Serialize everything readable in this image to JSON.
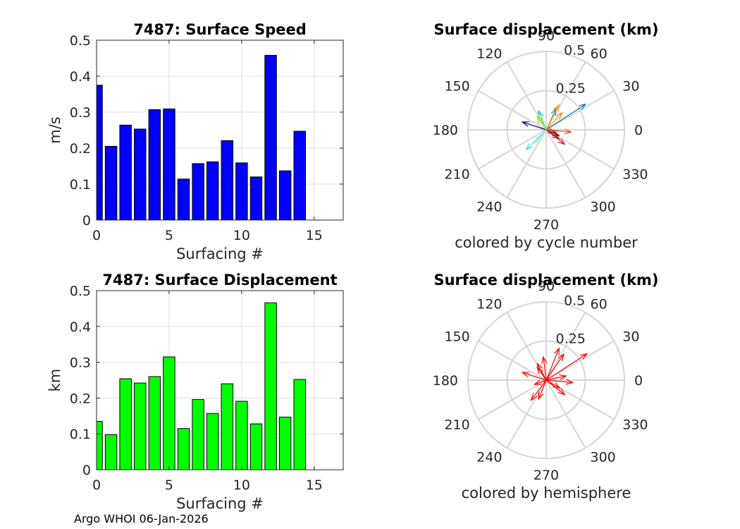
{
  "footer": "Argo WHOI 06-Jan-2026",
  "chart_data": [
    {
      "type": "bar",
      "title": "7487: Surface Speed",
      "xlabel": "Surfacing #",
      "ylabel": "m/s",
      "x": [
        0,
        1,
        2,
        3,
        4,
        5,
        6,
        7,
        8,
        9,
        10,
        11,
        12,
        13,
        14
      ],
      "values": [
        0.375,
        0.205,
        0.264,
        0.253,
        0.307,
        0.309,
        0.114,
        0.157,
        0.162,
        0.221,
        0.159,
        0.12,
        0.458,
        0.137,
        0.247
      ],
      "xlim": [
        0,
        17
      ],
      "ylim": [
        0,
        0.5
      ],
      "xticks": [
        "0",
        "5",
        "10",
        "15"
      ],
      "yticks": [
        "0",
        "0.1",
        "0.2",
        "0.3",
        "0.4",
        "0.5"
      ],
      "color": "#0000ff",
      "grid": true
    },
    {
      "type": "polar-vectors",
      "title": "Surface displacement (km)",
      "caption": "colored by cycle number",
      "rlim": [
        0,
        0.5
      ],
      "r_tick_labels": [
        "0.25",
        "0.5"
      ],
      "angle_tick_labels": [
        "0",
        "30",
        "60",
        "90",
        "120",
        "150",
        "180",
        "210",
        "240",
        "270",
        "300",
        "330"
      ],
      "vectors": [
        {
          "r": 0.3,
          "theta": 33,
          "color": "#0072bd"
        },
        {
          "r": 0.15,
          "theta": 65,
          "color": "#0090d0"
        },
        {
          "r": 0.16,
          "theta": 162,
          "color": "#00008b"
        },
        {
          "r": 0.13,
          "theta": 112,
          "color": "#00bfff"
        },
        {
          "r": 0.18,
          "theta": 225,
          "color": "#40e0d0"
        },
        {
          "r": 0.11,
          "theta": 230,
          "color": "#7fffd4"
        },
        {
          "r": 0.1,
          "theta": 125,
          "color": "#9acd32"
        },
        {
          "r": 0.12,
          "theta": 118,
          "color": "#adff2f"
        },
        {
          "r": 0.18,
          "theta": 63,
          "color": "#ffa500"
        },
        {
          "r": 0.15,
          "theta": 47,
          "color": "#ff8c00"
        },
        {
          "r": 0.16,
          "theta": 355,
          "color": "#ff4500"
        },
        {
          "r": 0.1,
          "theta": 325,
          "color": "#b22222"
        },
        {
          "r": 0.15,
          "theta": 322,
          "color": "#dc143c"
        },
        {
          "r": 0.09,
          "theta": 335,
          "color": "#8b0000"
        },
        {
          "r": 0.06,
          "theta": 340,
          "color": "#a52a2a"
        }
      ],
      "grid": true
    },
    {
      "type": "bar",
      "title": "7487: Surface Displacement",
      "xlabel": "Surfacing #",
      "ylabel": "km",
      "x": [
        0,
        1,
        2,
        3,
        4,
        5,
        6,
        7,
        8,
        9,
        10,
        11,
        12,
        13,
        14
      ],
      "values": [
        0.135,
        0.098,
        0.254,
        0.242,
        0.26,
        0.315,
        0.115,
        0.196,
        0.157,
        0.24,
        0.191,
        0.128,
        0.466,
        0.147,
        0.252
      ],
      "xlim": [
        0,
        17
      ],
      "ylim": [
        0,
        0.5
      ],
      "xticks": [
        "0",
        "5",
        "10",
        "15"
      ],
      "yticks": [
        "0",
        "0.1",
        "0.2",
        "0.3",
        "0.4",
        "0.5"
      ],
      "color": "#00ff00",
      "grid": true
    },
    {
      "type": "polar-vectors",
      "title": "Surface displacement (km)",
      "caption": "colored by hemisphere",
      "rlim": [
        0,
        0.5
      ],
      "r_tick_labels": [
        "0.25",
        "0.5"
      ],
      "angle_tick_labels": [
        "0",
        "30",
        "60",
        "90",
        "120",
        "150",
        "180",
        "210",
        "240",
        "270",
        "300",
        "330"
      ],
      "vectors": [
        {
          "r": 0.31,
          "theta": 33,
          "color": "#ff0000"
        },
        {
          "r": 0.22,
          "theta": 68,
          "color": "#ff0000"
        },
        {
          "r": 0.2,
          "theta": 56,
          "color": "#ff0000"
        },
        {
          "r": 0.16,
          "theta": 162,
          "color": "#ff0000"
        },
        {
          "r": 0.12,
          "theta": 118,
          "color": "#ff0000"
        },
        {
          "r": 0.1,
          "theta": 125,
          "color": "#ff0000"
        },
        {
          "r": 0.15,
          "theta": 97,
          "color": "#ff0000"
        },
        {
          "r": 0.17,
          "theta": 355,
          "color": "#ff0000"
        },
        {
          "r": 0.13,
          "theta": 12,
          "color": "#ff0000"
        },
        {
          "r": 0.15,
          "theta": 322,
          "color": "#ff0000"
        },
        {
          "r": 0.1,
          "theta": 330,
          "color": "#ff0000"
        },
        {
          "r": 0.16,
          "theta": 233,
          "color": "#ff0000"
        },
        {
          "r": 0.13,
          "theta": 248,
          "color": "#ff0000"
        },
        {
          "r": 0.08,
          "theta": 200,
          "color": "#ff0000"
        }
      ],
      "grid": true
    }
  ]
}
